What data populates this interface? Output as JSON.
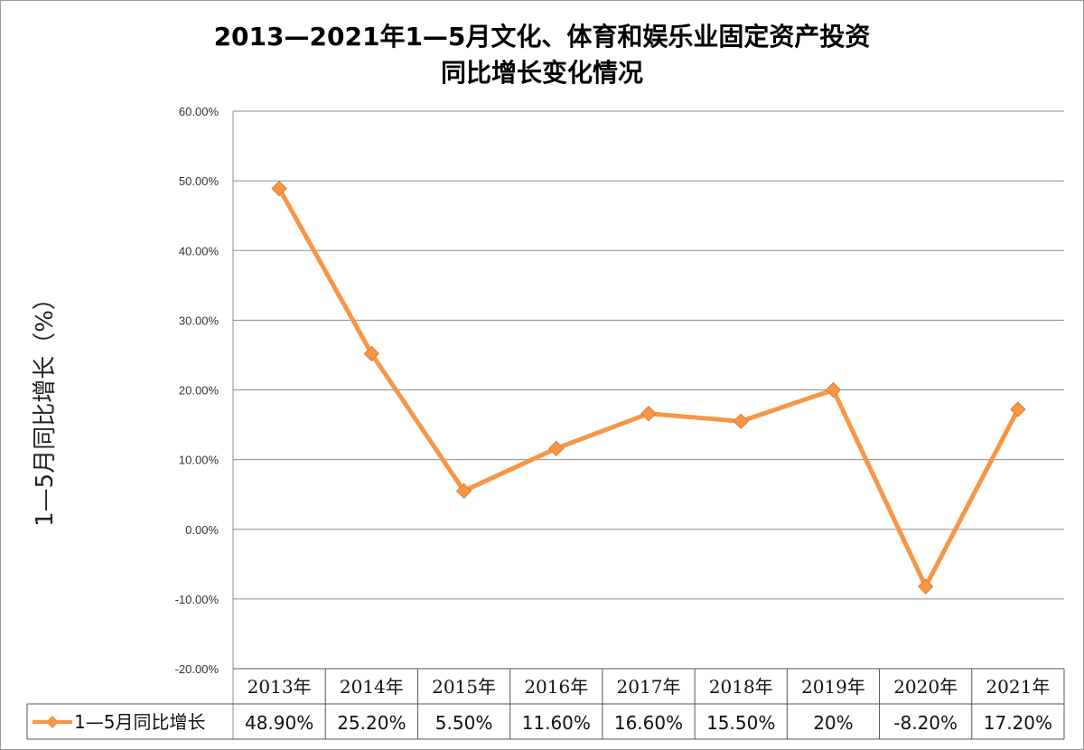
{
  "chart_data": {
    "type": "line",
    "title_line1": "2013—2021年1—5月文化、体育和娱乐业固定资产投资",
    "title_line2": "同比增长变化情况",
    "ylabel": "1—5月同比增长（%）",
    "ylim": [
      -20,
      60
    ],
    "ytick_step": 10,
    "ytick_labels": [
      "60.00%",
      "50.00%",
      "40.00%",
      "30.00%",
      "20.00%",
      "10.00%",
      "0.00%",
      "-10.00%",
      "-20.00%"
    ],
    "categories": [
      "2013年",
      "2014年",
      "2015年",
      "2016年",
      "2017年",
      "2018年",
      "2019年",
      "2020年",
      "2021年"
    ],
    "series": [
      {
        "name": "1—5月同比增长",
        "color": "#F79646",
        "marker": "diamond",
        "values": [
          48.9,
          25.2,
          5.5,
          11.6,
          16.6,
          15.5,
          20,
          -8.2,
          17.2
        ],
        "labels": [
          "48.90%",
          "25.20%",
          "5.50%",
          "11.60%",
          "16.60%",
          "15.50%",
          "20%",
          "-8.20%",
          "17.20%"
        ]
      }
    ],
    "grid": true,
    "legend": "data-table-left"
  }
}
